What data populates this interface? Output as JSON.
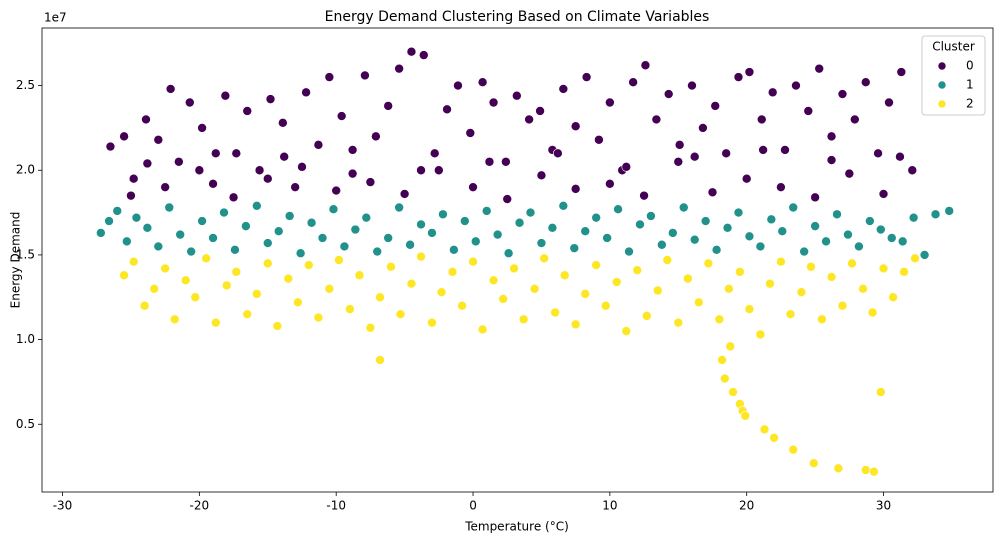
{
  "chart_data": {
    "type": "scatter",
    "title": "Energy Demand Clustering Based on Climate Variables",
    "x_label": "Temperature (°C)",
    "y_label": "Energy Demand",
    "y_offset_label": "1e7",
    "legend_title": "Cluster",
    "legend": "upper right",
    "xlim": [
      -31.5,
      38
    ],
    "ylim": [
      0.1,
      2.84
    ],
    "xticks": [
      -30,
      -20,
      -10,
      0,
      10,
      20,
      30
    ],
    "yticks": [
      0.5,
      {
        "value": 1,
        "label": "1.0"
      },
      1.5,
      {
        "value": 2,
        "label": "2.0"
      },
      2.5
    ],
    "series": [
      {
        "name": "0",
        "color": "#440154",
        "x": [
          -26.5,
          -25.5,
          -24.8,
          -23.9,
          -23,
          -22.1,
          -21.5,
          -20.7,
          -19.8,
          -19,
          -18.1,
          -17.3,
          -16.5,
          -15.6,
          -14.8,
          -13.9,
          -13,
          -12.2,
          -11.3,
          -10.5,
          -9.6,
          -8.8,
          -7.9,
          -7.1,
          -6.2,
          -5.4,
          -4.5,
          -3.6,
          -2.8,
          -1.9,
          -1.1,
          -0.2,
          0.7,
          1.5,
          2.4,
          3.2,
          4.1,
          4.9,
          5.8,
          6.6,
          7.5,
          8.3,
          9.2,
          10,
          10.9,
          11.7,
          12.6,
          13.4,
          14.3,
          15.1,
          16,
          16.8,
          17.7,
          18.5,
          19.4,
          20.2,
          21.1,
          21.9,
          22.8,
          23.6,
          24.5,
          25.3,
          26.2,
          27,
          27.9,
          28.7,
          29.6,
          30.4,
          31.3,
          32.1,
          -25,
          -22.5,
          -20,
          -17.5,
          -15,
          -12.5,
          -10,
          -7.5,
          -5,
          -2.5,
          0,
          2.5,
          5,
          7.5,
          10,
          12.5,
          15,
          17.5,
          20,
          22.5,
          25,
          27.5,
          30,
          -23.8,
          -18.8,
          -13.8,
          -8.8,
          -3.8,
          1.2,
          6.2,
          11.2,
          16.2,
          21.2,
          26.2,
          31.2
        ],
        "values": [
          2.14,
          2.2,
          1.95,
          2.3,
          2.18,
          2.48,
          2.05,
          2.4,
          2.25,
          1.92,
          2.44,
          2.1,
          2.35,
          2.0,
          2.42,
          2.28,
          1.9,
          2.46,
          2.15,
          2.55,
          2.32,
          1.98,
          2.56,
          2.2,
          2.38,
          2.6,
          2.7,
          2.68,
          2.1,
          2.36,
          2.5,
          2.22,
          2.52,
          2.4,
          2.05,
          2.44,
          2.3,
          2.35,
          2.12,
          2.48,
          2.26,
          2.55,
          2.18,
          2.4,
          2.0,
          2.52,
          2.62,
          2.3,
          2.45,
          2.15,
          2.5,
          2.25,
          2.38,
          2.1,
          2.55,
          2.58,
          2.3,
          2.46,
          2.12,
          2.5,
          2.35,
          2.6,
          2.2,
          2.45,
          2.3,
          2.52,
          2.1,
          2.4,
          2.58,
          2.0,
          1.85,
          1.9,
          2.0,
          1.84,
          1.95,
          2.02,
          1.88,
          1.93,
          1.86,
          2.0,
          1.9,
          1.83,
          1.97,
          1.89,
          1.92,
          1.85,
          2.05,
          1.87,
          1.95,
          1.9,
          1.84,
          1.98,
          1.86,
          2.04,
          2.1,
          2.08,
          2.12,
          2.0,
          2.05,
          2.1,
          2.02,
          2.08,
          2.12,
          2.06,
          2.08
        ]
      },
      {
        "name": "1",
        "color": "#21918c",
        "x": [
          -27.2,
          -26.6,
          -26,
          -25.3,
          -24.6,
          -23.8,
          -23,
          -22.2,
          -21.4,
          -20.6,
          -19.8,
          -19,
          -18.2,
          -17.4,
          -16.6,
          -15.8,
          -15,
          -14.2,
          -13.4,
          -12.6,
          -11.8,
          -11,
          -10.2,
          -9.4,
          -8.6,
          -7.8,
          -7,
          -6.2,
          -5.4,
          -4.6,
          -3.8,
          -3,
          -2.2,
          -1.4,
          -0.6,
          0.2,
          1,
          1.8,
          2.6,
          3.4,
          4.2,
          5,
          5.8,
          6.6,
          7.4,
          8.2,
          9,
          9.8,
          10.6,
          11.4,
          12.2,
          13,
          13.8,
          14.6,
          15.4,
          16.2,
          17,
          17.8,
          18.6,
          19.4,
          20.2,
          21,
          21.8,
          22.6,
          23.4,
          24.2,
          25,
          25.8,
          26.6,
          27.4,
          28.2,
          29,
          29.8,
          30.6,
          31.4,
          32.2,
          33,
          33.8,
          34.8
        ],
        "values": [
          1.63,
          1.7,
          1.76,
          1.58,
          1.72,
          1.66,
          1.55,
          1.78,
          1.62,
          1.52,
          1.7,
          1.6,
          1.75,
          1.53,
          1.67,
          1.79,
          1.57,
          1.64,
          1.73,
          1.51,
          1.69,
          1.6,
          1.77,
          1.55,
          1.65,
          1.72,
          1.52,
          1.6,
          1.78,
          1.56,
          1.68,
          1.63,
          1.74,
          1.53,
          1.7,
          1.58,
          1.76,
          1.62,
          1.51,
          1.69,
          1.75,
          1.57,
          1.66,
          1.79,
          1.54,
          1.64,
          1.72,
          1.6,
          1.77,
          1.52,
          1.68,
          1.73,
          1.56,
          1.63,
          1.78,
          1.59,
          1.7,
          1.53,
          1.66,
          1.75,
          1.61,
          1.55,
          1.71,
          1.64,
          1.78,
          1.52,
          1.67,
          1.58,
          1.74,
          1.62,
          1.55,
          1.7,
          1.65,
          1.6,
          1.58,
          1.72,
          1.5,
          1.74,
          1.76
        ]
      },
      {
        "name": "2",
        "color": "#fde725",
        "x": [
          -25.5,
          -24.8,
          -24,
          -23.3,
          -22.5,
          -21.8,
          -21,
          -20.3,
          -19.5,
          -18.8,
          -18,
          -17.3,
          -16.5,
          -15.8,
          -15,
          -14.3,
          -13.5,
          -12.8,
          -12,
          -11.3,
          -10.5,
          -9.8,
          -9,
          -8.3,
          -7.5,
          -6.8,
          -6,
          -5.3,
          -4.5,
          -3.8,
          -3,
          -2.3,
          -1.5,
          -0.8,
          0,
          0.7,
          1.5,
          2.2,
          3,
          3.7,
          4.5,
          5.2,
          6,
          6.7,
          7.5,
          8.2,
          9,
          9.7,
          10.5,
          11.2,
          12,
          12.7,
          13.5,
          14.2,
          15,
          15.7,
          16.5,
          17.2,
          18,
          18.7,
          19.5,
          20.2,
          21,
          21.7,
          22.5,
          23.2,
          24,
          24.7,
          25.5,
          26.2,
          27,
          27.7,
          28.5,
          29.2,
          30,
          30.7,
          31.5,
          32.3,
          -6.8,
          18.2,
          18.4,
          18.8,
          19,
          19.5,
          19.7,
          19.9,
          21.3,
          22,
          23.4,
          24.9,
          26.7,
          28.7,
          29.3,
          29.8
        ],
        "values": [
          1.38,
          1.46,
          1.2,
          1.3,
          1.42,
          1.12,
          1.35,
          1.25,
          1.48,
          1.1,
          1.32,
          1.4,
          1.15,
          1.27,
          1.45,
          1.08,
          1.36,
          1.22,
          1.44,
          1.13,
          1.3,
          1.47,
          1.18,
          1.38,
          1.07,
          1.25,
          1.43,
          1.15,
          1.33,
          1.49,
          1.1,
          1.28,
          1.4,
          1.2,
          1.46,
          1.06,
          1.35,
          1.24,
          1.42,
          1.12,
          1.3,
          1.48,
          1.16,
          1.38,
          1.09,
          1.27,
          1.44,
          1.2,
          1.34,
          1.05,
          1.41,
          1.14,
          1.29,
          1.47,
          1.1,
          1.36,
          1.22,
          1.45,
          1.12,
          1.3,
          1.4,
          1.18,
          1.03,
          1.33,
          1.46,
          1.15,
          1.28,
          1.43,
          1.12,
          1.37,
          1.2,
          1.45,
          1.3,
          1.16,
          1.42,
          1.25,
          1.4,
          1.48,
          0.88,
          0.88,
          0.77,
          0.96,
          0.69,
          0.62,
          0.58,
          0.55,
          0.47,
          0.42,
          0.35,
          0.27,
          0.24,
          0.23,
          0.22,
          0.69
        ]
      }
    ]
  }
}
